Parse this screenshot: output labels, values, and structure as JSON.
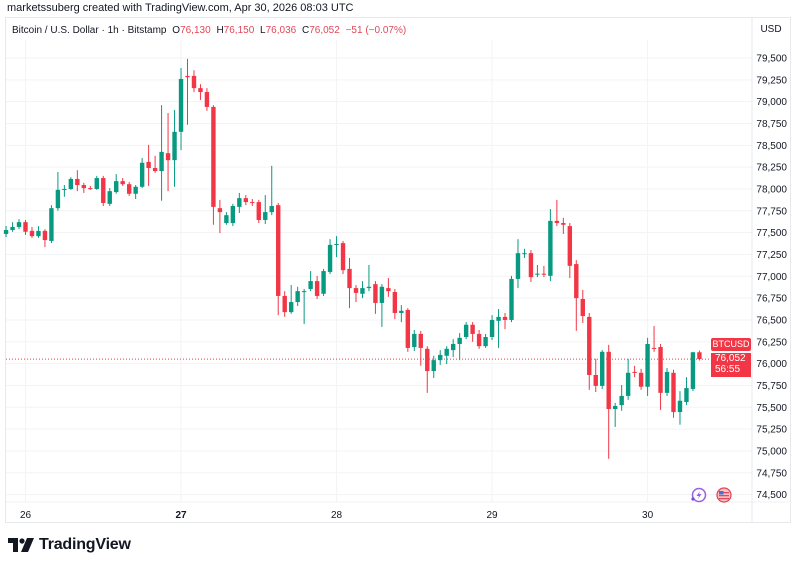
{
  "attribution": "marketssuberg created with TradingView.com, Apr 30, 2026 08:03 UTC",
  "legend": {
    "symbol": "Bitcoin / U.S. Dollar · 1h · Bitstamp",
    "o_label": "O",
    "o": "76,130",
    "h_label": "H",
    "h": "76,150",
    "l_label": "L",
    "l": "76,036",
    "c_label": "C",
    "c": "76,052",
    "change": "−51 (−0.07%)"
  },
  "currency": "USD",
  "price_tag": {
    "symbol": "BTCUSD",
    "price": "76,052",
    "countdown": "56:55"
  },
  "icons": [
    "lightning-icon",
    "us-flag-icon"
  ],
  "logo": {
    "text": "TradingView"
  },
  "colors": {
    "up": "#089981",
    "down": "#F23645",
    "grid": "#f2f3f5"
  },
  "chart_data": {
    "type": "candlestick",
    "interval": "1h",
    "first_candle": "Apr 25 21:00",
    "ylim": [
      74500,
      79500
    ],
    "grid": true,
    "y_ticks": [
      "79,500",
      "79,250",
      "79,000",
      "78,750",
      "78,500",
      "78,250",
      "78,000",
      "77,750",
      "77,500",
      "77,250",
      "77,000",
      "76,750",
      "76,500",
      "76,250",
      "76,000",
      "75,750",
      "75,500",
      "75,250",
      "75,000",
      "74,750",
      "74,500"
    ],
    "x_ticks": [
      {
        "label": "26",
        "bold": false
      },
      {
        "label": "27",
        "bold": true
      },
      {
        "label": "28",
        "bold": false
      },
      {
        "label": "29",
        "bold": false
      },
      {
        "label": "30",
        "bold": false
      }
    ],
    "last_price": 76052,
    "ohlc": [
      [
        77485,
        77575,
        77450,
        77530
      ],
      [
        77530,
        77620,
        77510,
        77565
      ],
      [
        77565,
        77655,
        77540,
        77620
      ],
      [
        77620,
        77645,
        77475,
        77510
      ],
      [
        77520,
        77565,
        77440,
        77460
      ],
      [
        77460,
        77575,
        77440,
        77520
      ],
      [
        77520,
        77540,
        77335,
        77415
      ],
      [
        77405,
        77815,
        77380,
        77780
      ],
      [
        77780,
        78195,
        77750,
        77990
      ],
      [
        77990,
        78045,
        77910,
        78000
      ],
      [
        78000,
        78135,
        77990,
        78115
      ],
      [
        78115,
        78215,
        77975,
        78045
      ],
      [
        78045,
        78070,
        77955,
        78010
      ],
      [
        78010,
        78035,
        77990,
        78005
      ],
      [
        78000,
        78150,
        77990,
        78125
      ],
      [
        78125,
        78150,
        77805,
        77840
      ],
      [
        77830,
        78010,
        77805,
        77975
      ],
      [
        77965,
        78170,
        77945,
        78090
      ],
      [
        78090,
        78125,
        78035,
        78055
      ],
      [
        78055,
        78080,
        77920,
        77945
      ],
      [
        77945,
        78045,
        77885,
        78025
      ],
      [
        78025,
        78355,
        78010,
        78300
      ],
      [
        78310,
        78505,
        78035,
        78240
      ],
      [
        78240,
        78380,
        78185,
        78205
      ],
      [
        78205,
        78960,
        77865,
        78425
      ],
      [
        78410,
        78870,
        77975,
        78330
      ],
      [
        78330,
        78905,
        78025,
        78655
      ],
      [
        78655,
        79385,
        78445,
        79260
      ],
      [
        79295,
        79490,
        78735,
        79280
      ],
      [
        79295,
        79360,
        79110,
        79155
      ],
      [
        79155,
        79200,
        79020,
        79110
      ],
      [
        79110,
        79155,
        78895,
        78940
      ],
      [
        78940,
        78960,
        77590,
        77795
      ],
      [
        77780,
        77875,
        77495,
        77735
      ],
      [
        77610,
        77735,
        77590,
        77700
      ],
      [
        77610,
        77830,
        77575,
        77805
      ],
      [
        77795,
        77955,
        77725,
        77895
      ],
      [
        77895,
        77930,
        77815,
        77850
      ],
      [
        77850,
        77885,
        77805,
        77845
      ],
      [
        77850,
        77875,
        77610,
        77645
      ],
      [
        77645,
        77930,
        77600,
        77735
      ],
      [
        77735,
        78265,
        77700,
        77805
      ],
      [
        77815,
        77840,
        76555,
        76775
      ],
      [
        76775,
        76830,
        76535,
        76590
      ],
      [
        76590,
        76900,
        76570,
        76705
      ],
      [
        76705,
        76880,
        76660,
        76830
      ],
      [
        76820,
        76855,
        76455,
        76830
      ],
      [
        76855,
        77060,
        76830,
        76945
      ],
      [
        76945,
        77005,
        76740,
        76775
      ],
      [
        76800,
        77085,
        76775,
        77060
      ],
      [
        77050,
        77425,
        77025,
        77360
      ],
      [
        77360,
        77460,
        77220,
        77370
      ],
      [
        77380,
        77405,
        77025,
        77070
      ],
      [
        77085,
        77210,
        76635,
        76865
      ],
      [
        76865,
        76900,
        76705,
        76810
      ],
      [
        76800,
        76945,
        76750,
        76865
      ],
      [
        76865,
        77130,
        76830,
        76880
      ],
      [
        76910,
        76945,
        76570,
        76695
      ],
      [
        76695,
        76910,
        76420,
        76880
      ],
      [
        76865,
        76980,
        76765,
        76830
      ],
      [
        76820,
        76855,
        76510,
        76580
      ],
      [
        76580,
        76670,
        76475,
        76605
      ],
      [
        76615,
        76635,
        76135,
        76180
      ],
      [
        76190,
        76385,
        76145,
        76340
      ],
      [
        76340,
        76375,
        75975,
        76180
      ],
      [
        76170,
        76200,
        75665,
        75915
      ],
      [
        75915,
        76090,
        75835,
        76040
      ],
      [
        76040,
        76155,
        75985,
        76100
      ],
      [
        76090,
        76200,
        75995,
        76170
      ],
      [
        76155,
        76280,
        76075,
        76225
      ],
      [
        76225,
        76350,
        76040,
        76295
      ],
      [
        76305,
        76475,
        76280,
        76445
      ],
      [
        76445,
        76475,
        76250,
        76340
      ],
      [
        76340,
        76385,
        76170,
        76200
      ],
      [
        76200,
        76340,
        76180,
        76305
      ],
      [
        76305,
        76555,
        76270,
        76500
      ],
      [
        76490,
        76625,
        76180,
        76535
      ],
      [
        76535,
        76580,
        76395,
        76500
      ],
      [
        76500,
        77005,
        76475,
        76970
      ],
      [
        76970,
        77425,
        76865,
        77265
      ],
      [
        77255,
        77315,
        77210,
        77265
      ],
      [
        77265,
        77300,
        76935,
        76990
      ],
      [
        77025,
        77130,
        76990,
        77030
      ],
      [
        77030,
        77120,
        76990,
        77025
      ],
      [
        77005,
        77770,
        76945,
        77635
      ],
      [
        77635,
        77875,
        77575,
        77610
      ],
      [
        77610,
        77670,
        77485,
        77590
      ],
      [
        77575,
        77610,
        76980,
        77120
      ],
      [
        77140,
        77185,
        76375,
        76750
      ],
      [
        76740,
        76845,
        76465,
        76545
      ],
      [
        76535,
        76580,
        75700,
        75870
      ],
      [
        75870,
        76055,
        75675,
        75745
      ],
      [
        75745,
        76155,
        75710,
        76135
      ],
      [
        76135,
        76215,
        74910,
        75480
      ],
      [
        75480,
        75550,
        75275,
        75515
      ],
      [
        75525,
        75755,
        75460,
        75630
      ],
      [
        75630,
        76055,
        75585,
        75895
      ],
      [
        75905,
        75975,
        75845,
        75900
      ],
      [
        75895,
        75940,
        75700,
        75735
      ],
      [
        75735,
        76295,
        75630,
        76225
      ],
      [
        76180,
        76430,
        76135,
        76170
      ],
      [
        76190,
        76225,
        75470,
        75665
      ],
      [
        75665,
        75950,
        75630,
        75905
      ],
      [
        75895,
        75930,
        75380,
        75445
      ],
      [
        75445,
        75685,
        75300,
        75575
      ],
      [
        75560,
        75845,
        75525,
        75720
      ],
      [
        75710,
        76135,
        75685,
        76130
      ],
      [
        76130,
        76150,
        76036,
        76052
      ]
    ]
  }
}
